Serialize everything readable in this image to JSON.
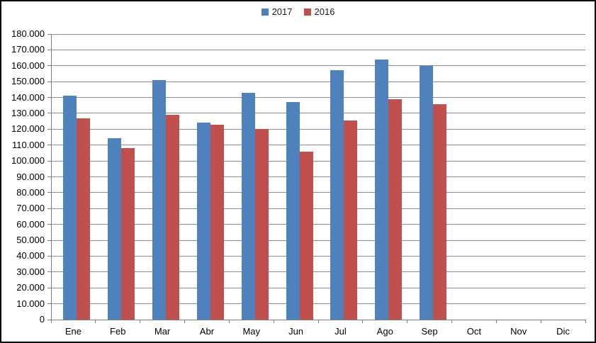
{
  "chart_data": {
    "type": "bar",
    "title": "",
    "categories": [
      "Ene",
      "Feb",
      "Mar",
      "Abr",
      "May",
      "Jun",
      "Jul",
      "Ago",
      "Sep",
      "Oct",
      "Nov",
      "Dic"
    ],
    "series": [
      {
        "name": "2017",
        "color": "#4f81bd",
        "values": [
          141000,
          114500,
          151000,
          124000,
          143000,
          137000,
          157000,
          164000,
          160000,
          null,
          null,
          null
        ]
      },
      {
        "name": "2016",
        "color": "#c0504d",
        "values": [
          127000,
          108000,
          129000,
          123000,
          120000,
          106000,
          125500,
          139000,
          136000,
          null,
          null,
          null
        ]
      }
    ],
    "xlabel": "",
    "ylabel": "",
    "ylim": [
      0,
      180000
    ],
    "ytick_step": 10000,
    "ytick_labels": [
      "0",
      "10.000",
      "20.000",
      "30.000",
      "40.000",
      "50.000",
      "60.000",
      "70.000",
      "80.000",
      "90.000",
      "100.000",
      "110.000",
      "120.000",
      "130.000",
      "140.000",
      "150.000",
      "160.000",
      "170.000",
      "180.000"
    ],
    "grid": true,
    "legend_position": "top",
    "number_format": "thousands-dot",
    "colors": {
      "gridline": "#8c8c8c",
      "axis": "#7f7f7f",
      "frame_border": "#000000",
      "background": "#ffffff",
      "text": "#000000"
    }
  }
}
